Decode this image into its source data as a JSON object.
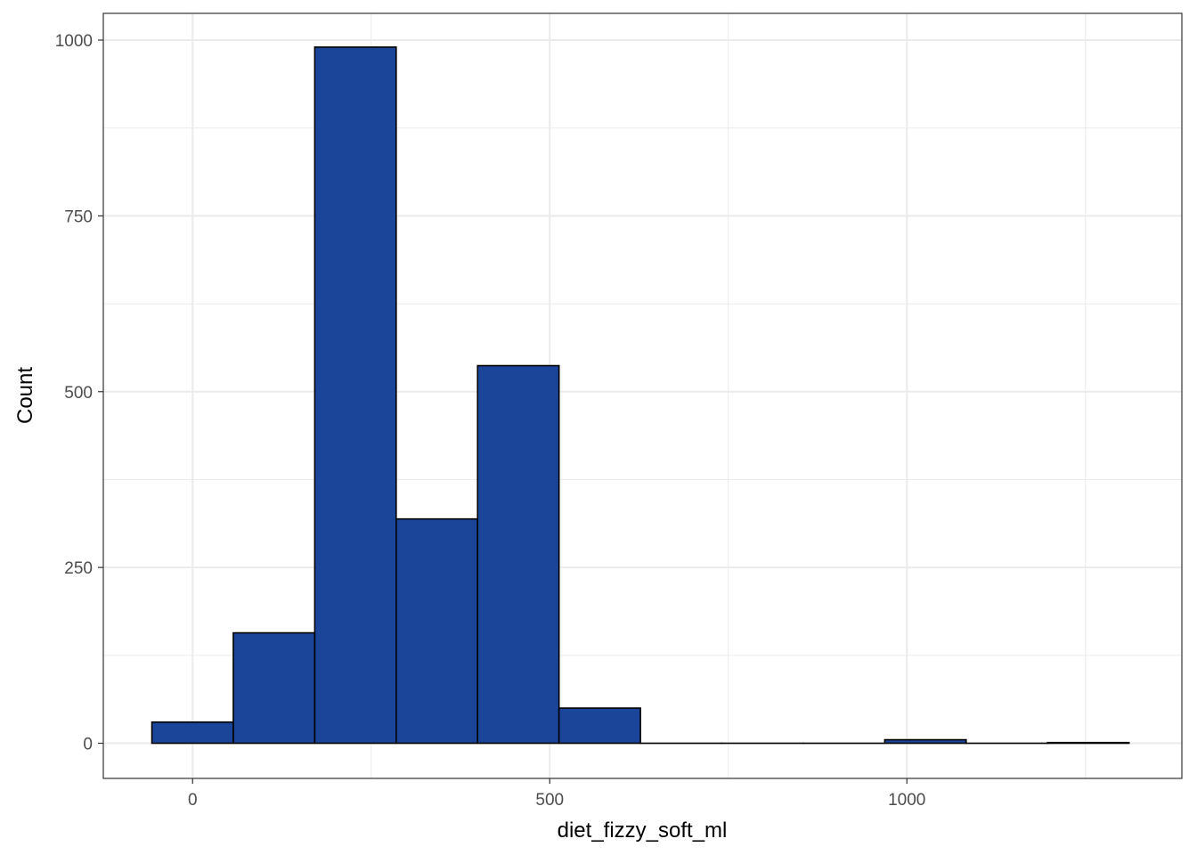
{
  "chart_data": {
    "type": "histogram",
    "xlabel": "diet_fizzy_soft_ml",
    "ylabel": "Count",
    "xlim": [
      -125,
      1385
    ],
    "ylim": [
      -50,
      1038
    ],
    "x_ticks": [
      0,
      500,
      1000
    ],
    "x_minor": [
      -250,
      250,
      750,
      1250
    ],
    "y_ticks": [
      0,
      250,
      500,
      750,
      1000
    ],
    "y_minor": [
      125,
      375,
      625,
      875
    ],
    "grid": true,
    "legend": "none",
    "fill_color": "#1a4599",
    "edge_color": "#000000",
    "bins": [
      {
        "x0": -57,
        "x1": 57,
        "count": 30
      },
      {
        "x0": 57,
        "x1": 171,
        "count": 157
      },
      {
        "x0": 171,
        "x1": 285,
        "count": 990
      },
      {
        "x0": 285,
        "x1": 399,
        "count": 319
      },
      {
        "x0": 399,
        "x1": 513,
        "count": 537
      },
      {
        "x0": 513,
        "x1": 627,
        "count": 50
      },
      {
        "x0": 627,
        "x1": 741,
        "count": 0
      },
      {
        "x0": 741,
        "x1": 855,
        "count": 0
      },
      {
        "x0": 855,
        "x1": 969,
        "count": 0
      },
      {
        "x0": 969,
        "x1": 1083,
        "count": 5
      },
      {
        "x0": 1083,
        "x1": 1197,
        "count": 0
      },
      {
        "x0": 1197,
        "x1": 1311,
        "count": 1
      }
    ]
  }
}
